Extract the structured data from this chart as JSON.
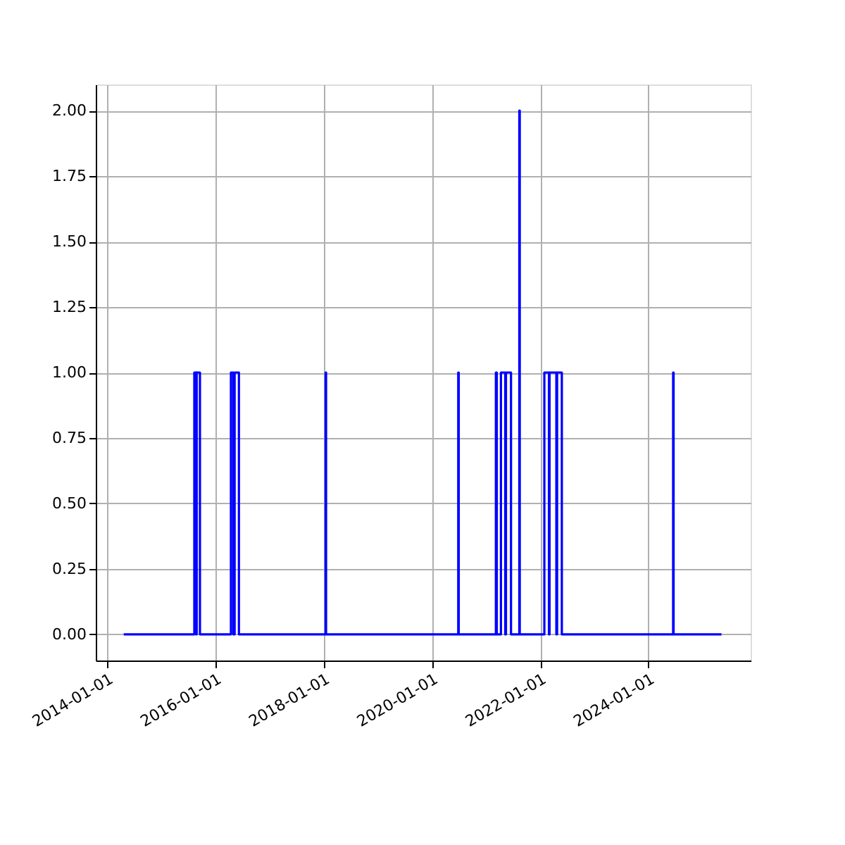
{
  "chart_data": {
    "type": "line",
    "x": [
      "2014-04-23",
      "2015-08-12",
      "2015-08-12",
      "2015-08-25",
      "2015-08-25",
      "2015-08-28",
      "2015-08-28",
      "2015-09-19",
      "2015-09-19",
      "2016-04-15",
      "2016-04-15",
      "2016-05-01",
      "2016-05-01",
      "2016-05-10",
      "2016-05-10",
      "2016-06-08",
      "2016-06-08",
      "2018-01-14",
      "2018-01-14",
      "2018-01-17",
      "2018-01-17",
      "2020-06-27",
      "2020-06-27",
      "2020-06-30",
      "2020-06-30",
      "2021-03-08",
      "2021-03-08",
      "2021-03-14",
      "2021-03-14",
      "2021-04-11",
      "2021-04-11",
      "2021-05-10",
      "2021-05-10",
      "2021-05-15",
      "2021-05-15",
      "2021-06-18",
      "2021-06-18",
      "2021-08-13",
      "2021-08-13",
      "2021-08-16",
      "2021-08-16",
      "2022-01-29",
      "2022-01-29",
      "2022-03-01",
      "2022-03-01",
      "2022-03-05",
      "2022-03-05",
      "2022-04-20",
      "2022-04-20",
      "2022-04-25",
      "2022-04-25",
      "2022-05-27",
      "2022-05-27",
      "2024-06-16",
      "2024-06-16",
      "2024-06-19",
      "2024-06-19",
      "2025-05-08"
    ],
    "series": [
      {
        "color": "#0000ff",
        "values": [
          0,
          0,
          1,
          1,
          0,
          0,
          1,
          1,
          0,
          0,
          1,
          1,
          0,
          0,
          1,
          1,
          0,
          0,
          1,
          1,
          0,
          0,
          1,
          1,
          0,
          0,
          1,
          1,
          0,
          0,
          1,
          1,
          0,
          0,
          1,
          1,
          0,
          0,
          2,
          2,
          0,
          0,
          1,
          1,
          0,
          0,
          1,
          1,
          0,
          0,
          1,
          1,
          0,
          0,
          1,
          1,
          0,
          0
        ]
      }
    ],
    "xlim": [
      "2013-10-16",
      "2025-11-21"
    ],
    "xticks": [
      "2014-01-01",
      "2016-01-01",
      "2018-01-01",
      "2020-01-01",
      "2022-01-01",
      "2024-01-01"
    ],
    "ylim": [
      -0.1,
      2.1
    ],
    "yticks": [
      {
        "value": 0,
        "label": "0.00"
      },
      {
        "value": 0.25,
        "label": "0.25"
      },
      {
        "value": 0.5,
        "label": "0.50"
      },
      {
        "value": 0.75,
        "label": "0.75"
      },
      {
        "value": 1,
        "label": "1.00"
      },
      {
        "value": 1.25,
        "label": "1.25"
      },
      {
        "value": 1.5,
        "label": "1.50"
      },
      {
        "value": 1.75,
        "label": "1.75"
      },
      {
        "value": 2,
        "label": "2.00"
      }
    ],
    "grid": true,
    "line_style": "solid",
    "marker": "none"
  }
}
